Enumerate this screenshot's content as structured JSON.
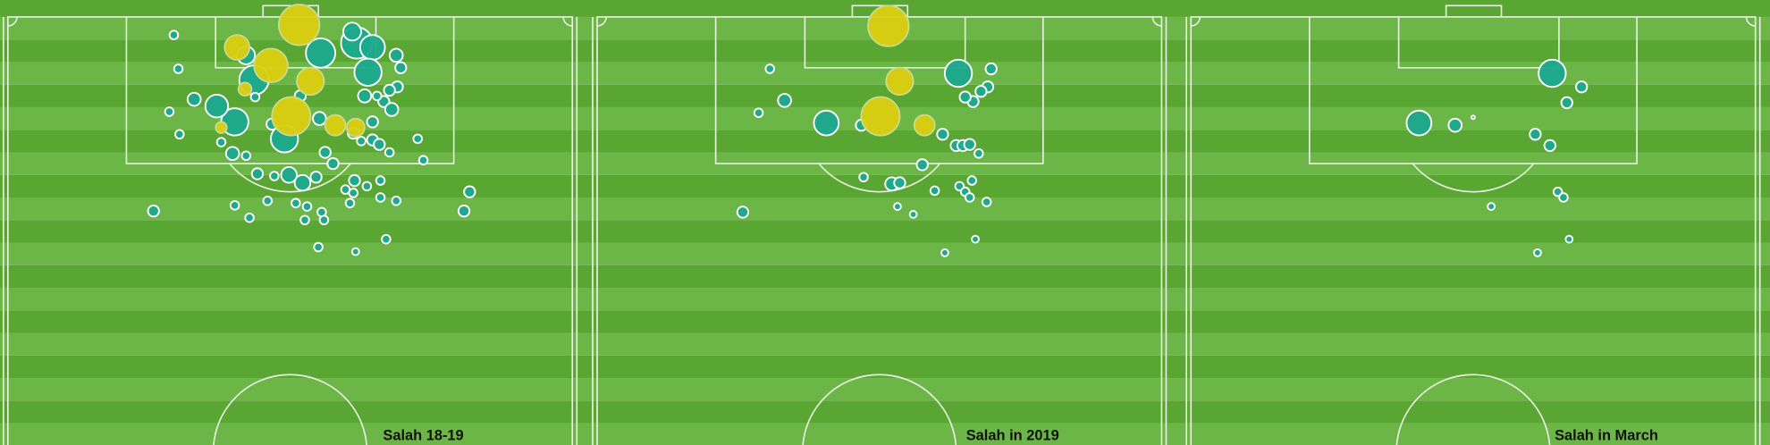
{
  "chart_data": [
    {
      "type": "scatter",
      "title": "Salah 18-19",
      "xlim": [
        0,
        100
      ],
      "ylim": [
        0,
        77.2
      ],
      "series": [
        {
          "color": "#dccf10",
          "x": [
            51.6,
            50.2,
            46.6,
            40.6,
            53.6,
            58,
            61.6,
            42,
            37.8
          ],
          "values": [
            1.4,
            17.6,
            8.6,
            5.4,
            11.4,
            19.2,
            19.6,
            12.8,
            19.6
          ],
          "sizes": [
            0.67,
            0.6,
            0.46,
            0.25,
            0.3,
            0.17,
            0.13,
            0.07,
            0.05
          ]
        },
        {
          "color": "#1ba98e",
          "x": [
            55.4,
            61.8,
            64.6,
            61,
            63.8,
            40.2,
            49,
            37,
            43.6,
            42.2,
            68.8,
            69.6,
            69,
            67.6,
            66.6,
            68,
            64.6,
            63.2,
            65.4,
            61.2,
            62.6,
            64.6,
            65.8,
            67.6,
            72.6,
            73.6,
            56.2,
            57.6,
            39.8,
            42.2,
            44.2,
            47.2,
            49.8,
            52.2,
            54.6,
            59.8,
            61.4,
            61.2,
            63.6,
            66,
            66,
            68.8,
            60.6,
            40.2,
            42.8,
            46,
            51,
            53,
            55.6,
            56,
            52.6,
            55,
            61.6,
            67,
            80.8,
            81.8,
            25.8,
            30.4,
            37.8,
            28.6,
            33,
            30.2,
            29.4,
            46.8,
            55.2,
            43.8,
            51.8
          ],
          "values": [
            6.4,
            4.6,
            5.4,
            2.6,
            9.8,
            18.6,
            21.6,
            15.8,
            11.2,
            6.8,
            6.8,
            9,
            12.4,
            13,
            15,
            16.4,
            18.6,
            14,
            14,
            20.6,
            22,
            21.8,
            22.6,
            24,
            21.6,
            25.4,
            24,
            26,
            24.2,
            24.6,
            27.8,
            28.2,
            28,
            29.4,
            28.4,
            30.6,
            29,
            31.2,
            30,
            29,
            32,
            32.6,
            33,
            33.4,
            35.6,
            32.6,
            33,
            33.6,
            34.6,
            36,
            36,
            40.8,
            41.6,
            39.4,
            34.4,
            31,
            34.4,
            20.8,
            22.2,
            16.8,
            14.6,
            9.2,
            3.2,
            19,
            18,
            14.2,
            14
          ],
          "sizes": [
            0.35,
            0.4,
            0.25,
            0.13,
            0.3,
            0.3,
            0.3,
            0.21,
            0.35,
            0.13,
            0.07,
            0.05,
            0.05,
            0.05,
            0.05,
            0.07,
            0.05,
            0.07,
            0.03,
            0.05,
            0.03,
            0.05,
            0.05,
            0.03,
            0.03,
            0.03,
            0.05,
            0.05,
            0.07,
            0.03,
            0.05,
            0.03,
            0.1,
            0.1,
            0.05,
            0.03,
            0.05,
            0.03,
            0.03,
            0.03,
            0.03,
            0.03,
            0.03,
            0.03,
            0.03,
            0.03,
            0.03,
            0.03,
            0.03,
            0.03,
            0.03,
            0.03,
            0.02,
            0.03,
            0.05,
            0.05,
            0.05,
            0.03,
            0.03,
            0.03,
            0.07,
            0.03,
            0.03,
            0.05,
            0.07,
            0.03,
            0.05
          ]
        }
      ]
    },
    {
      "type": "scatter",
      "title": "Salah in 2019",
      "xlim": [
        0,
        100
      ],
      "ylim": [
        0,
        77.2
      ],
      "series": [
        {
          "color": "#dccf10",
          "x": [
            51.6,
            50.2,
            53.6,
            58
          ],
          "values": [
            1.6,
            17.6,
            11.4,
            19.2
          ],
          "sizes": [
            0.67,
            0.6,
            0.3,
            0.17
          ]
        },
        {
          "color": "#1ba98e",
          "x": [
            64,
            40.6,
            69.8,
            69.2,
            68,
            66.6,
            65.2,
            61.2,
            63.6,
            64.8,
            66,
            67.6,
            57.6,
            52.2,
            53.6,
            47.2,
            46.8,
            33.2,
            30.6,
            28.6,
            25.8,
            59.8,
            64.2,
            66.4,
            65.2,
            66,
            69,
            53.2,
            56,
            67,
            61.6
          ],
          "values": [
            10,
            18.8,
            9.2,
            12.4,
            13.2,
            15,
            14.2,
            20.8,
            22.8,
            22.8,
            22.6,
            24.2,
            26.2,
            29.6,
            29.4,
            28.4,
            19.2,
            14.8,
            9.2,
            17,
            34.6,
            30.8,
            30,
            29,
            31,
            32,
            32.8,
            33.6,
            35,
            39.4,
            41.8
          ],
          "sizes": [
            0.3,
            0.25,
            0.05,
            0.05,
            0.05,
            0.05,
            0.05,
            0.05,
            0.05,
            0.05,
            0.05,
            0.03,
            0.05,
            0.07,
            0.05,
            0.03,
            0.05,
            0.07,
            0.03,
            0.03,
            0.05,
            0.03,
            0.03,
            0.03,
            0.03,
            0.03,
            0.03,
            0.02,
            0.02,
            0.02,
            0.02
          ]
        }
      ]
    },
    {
      "type": "scatter",
      "title": "Salah in March",
      "xlim": [
        0,
        100
      ],
      "ylim": [
        0,
        77.2
      ],
      "series": [
        {
          "color": "#1ba98e",
          "x": [
            64,
            40.4,
            46.8,
            69.2,
            66.6,
            61,
            63.6,
            50,
            65,
            66,
            53.2,
            67,
            61.4
          ],
          "values": [
            10,
            18.8,
            19.2,
            12.4,
            15.2,
            20.8,
            22.8,
            17.8,
            31,
            32,
            33.6,
            39.4,
            41.8
          ],
          "sizes": [
            0.3,
            0.25,
            0.07,
            0.05,
            0.05,
            0.05,
            0.05,
            0.005,
            0.03,
            0.03,
            0.02,
            0.02,
            0.02
          ]
        }
      ]
    }
  ]
}
